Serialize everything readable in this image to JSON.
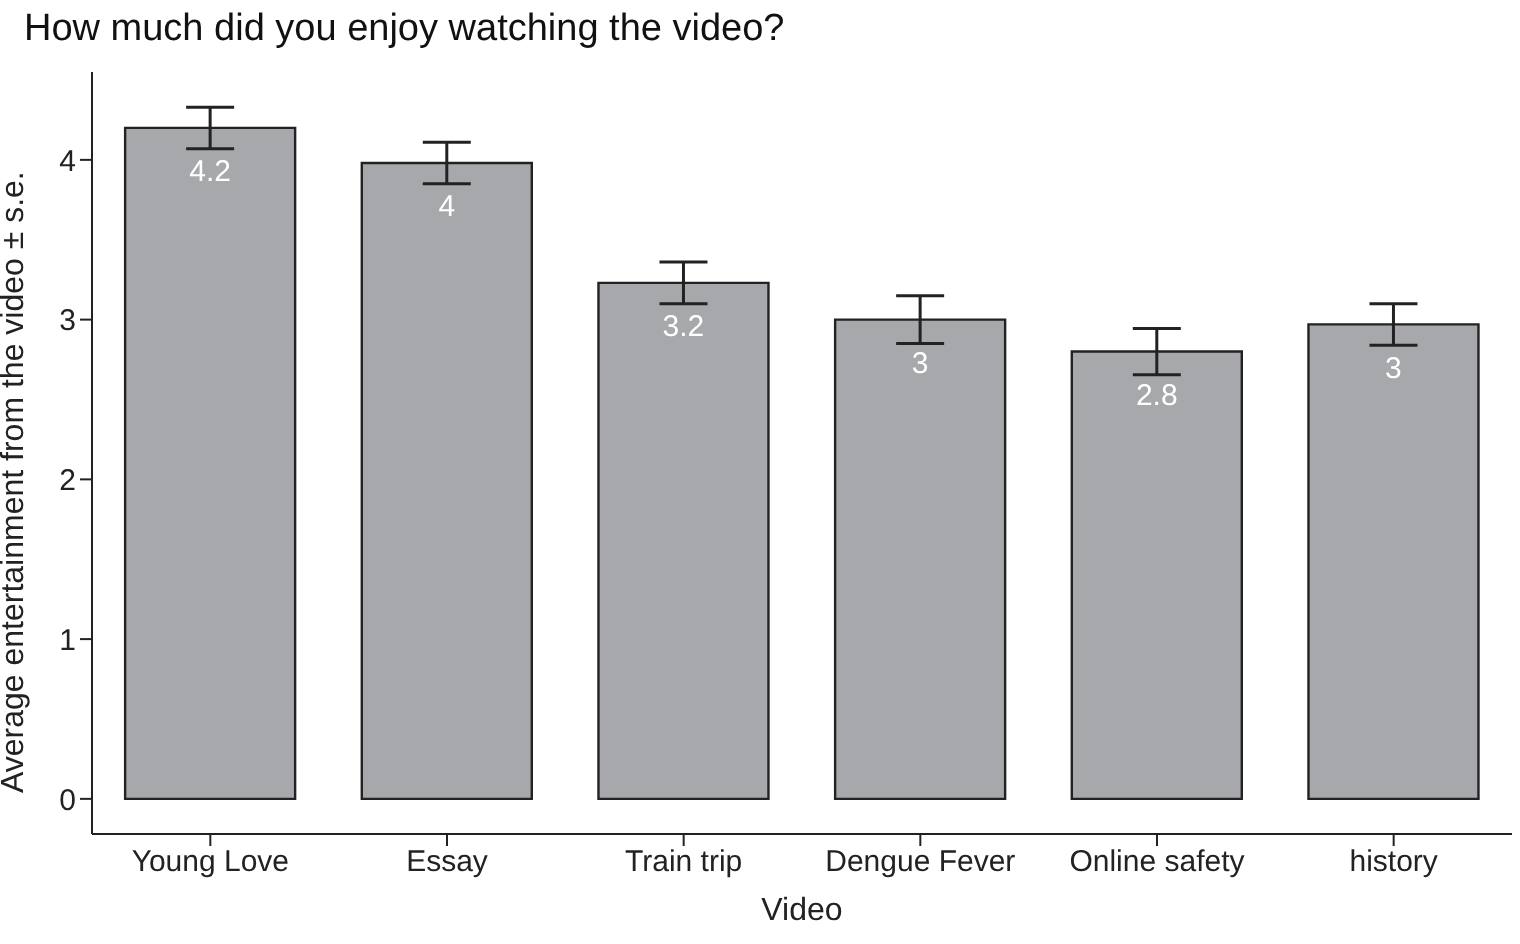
{
  "chart_data": {
    "type": "bar",
    "title": "How much did you enjoy watching the video?",
    "xlabel": "Video",
    "ylabel": "Average entertainment from the video ± s.e.",
    "categories": [
      "Young Love",
      "Essay",
      "Train trip",
      "Dengue Fever",
      "Online safety",
      "history"
    ],
    "values": [
      4.2,
      3.98,
      3.23,
      3.0,
      2.8,
      2.97
    ],
    "errors": [
      0.13,
      0.13,
      0.13,
      0.15,
      0.145,
      0.13
    ],
    "value_labels": [
      "4.2",
      "4",
      "3.2",
      "3",
      "2.8",
      "3"
    ],
    "color": "#a7a8ab",
    "ylim": [
      -0.22,
      4.55
    ],
    "yticks": [
      0,
      1,
      2,
      3,
      4
    ]
  }
}
